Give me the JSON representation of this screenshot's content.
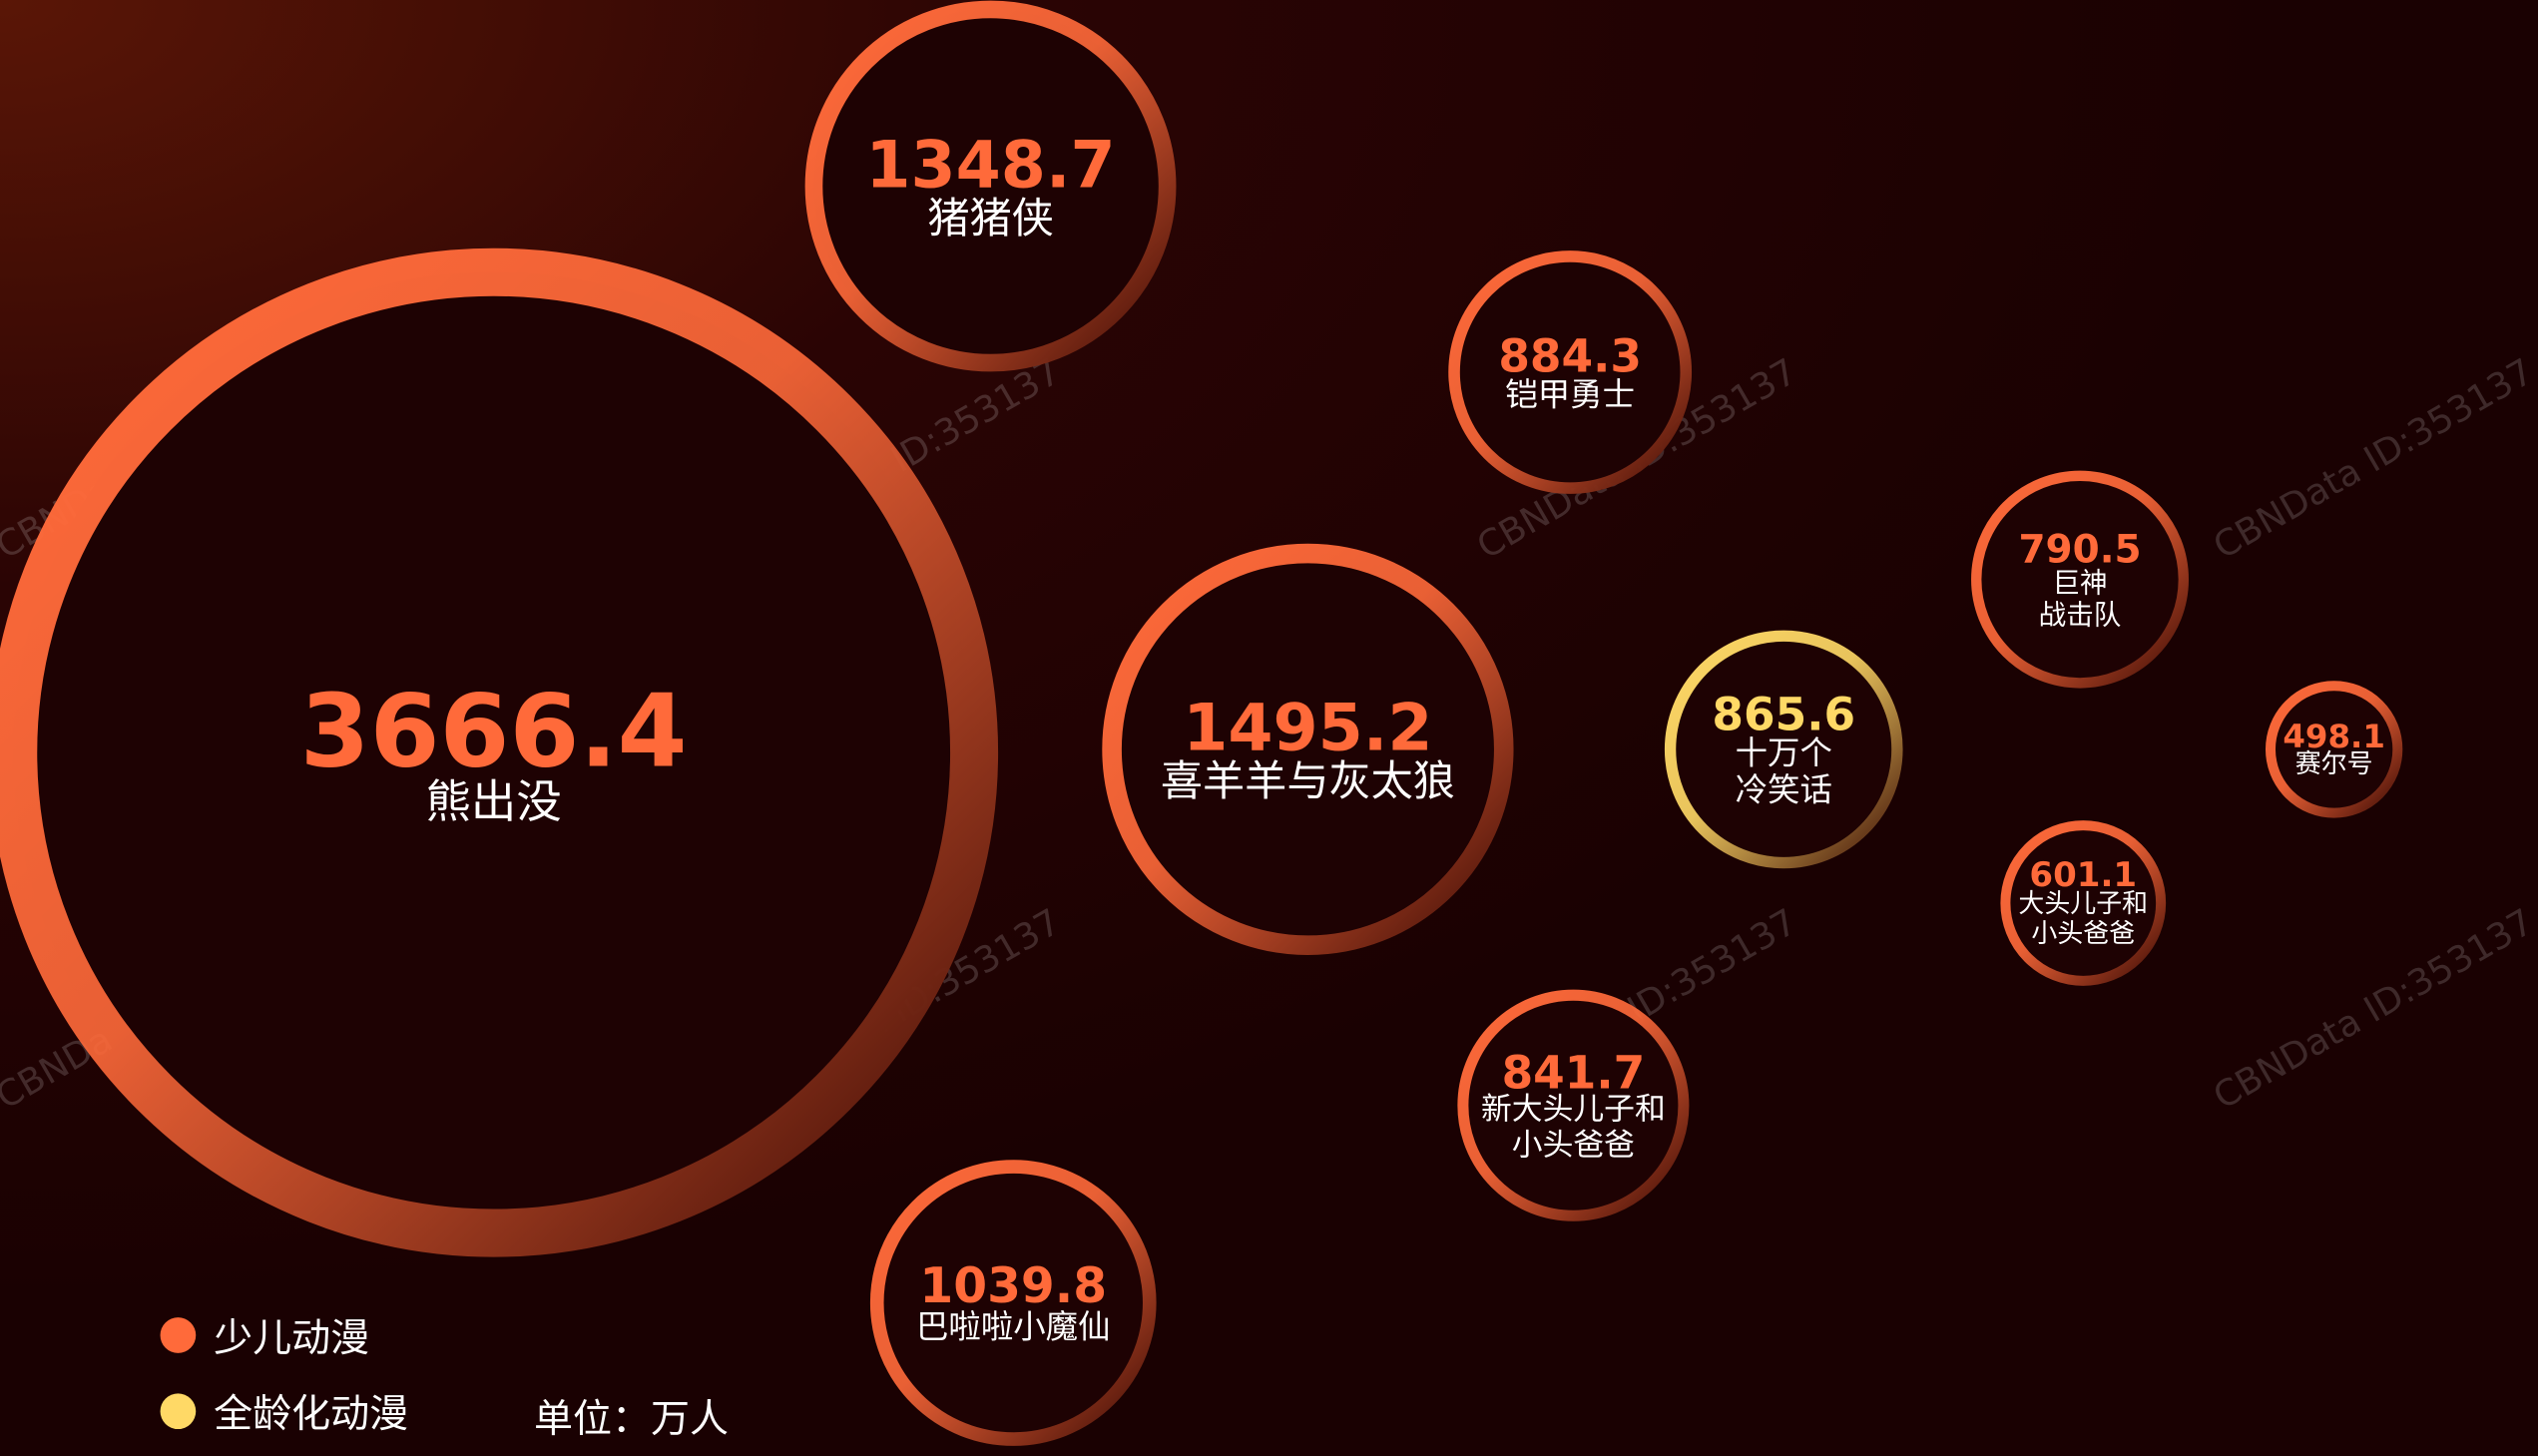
{
  "chart_data": {
    "type": "bubble",
    "categories": [
      "熊出没",
      "猪猪侠",
      "铠甲勇士",
      "喜羊羊与灰太狼",
      "十万个\n冷笑话",
      "巨神\n战击队",
      "赛尔号",
      "大头儿子和\n小头爸爸",
      "新大头儿子和\n小头爸爸",
      "巴啦啦小魔仙"
    ],
    "series": [
      {
        "name": "少儿动漫",
        "color": "#ff6a3a",
        "values": [
          3666.4,
          1348.7,
          884.3,
          1495.2,
          null,
          790.5,
          498.1,
          601.1,
          841.7,
          1039.8
        ]
      },
      {
        "name": "全龄化动漫",
        "color": "#ffd966",
        "values": [
          null,
          null,
          null,
          null,
          865.6,
          null,
          null,
          null,
          null,
          null
        ]
      }
    ],
    "unit": "单位：万人",
    "watermark": "CBNData ID:353137"
  }
}
